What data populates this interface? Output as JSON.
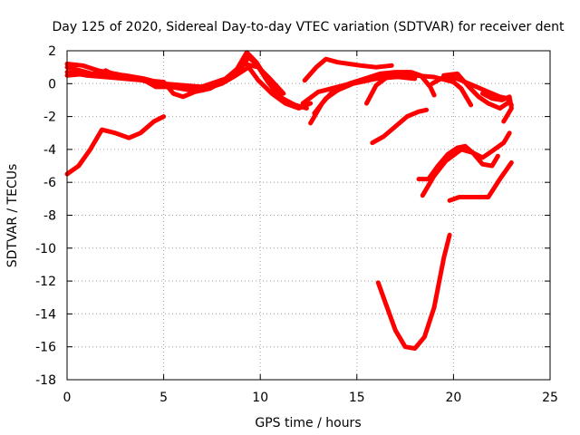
{
  "chart_data": {
    "type": "line",
    "title": "Day 125 of 2020, Sidereal Day-to-day VTEC variation (SDTVAR) for receiver dent",
    "xlabel": "GPS time / hours",
    "ylabel": "SDTVAR / TECUs",
    "xlim": [
      0,
      25
    ],
    "ylim": [
      -18,
      2
    ],
    "xticks": [
      0,
      5,
      10,
      15,
      20,
      25
    ],
    "yticks": [
      -18,
      -16,
      -14,
      -12,
      -10,
      -8,
      -6,
      -4,
      -2,
      0,
      2
    ],
    "grid": true,
    "series_color": "#ff0000",
    "series": [
      {
        "name": "s1",
        "points": [
          [
            0,
            1.2
          ],
          [
            0.8,
            1.1
          ],
          [
            1.6,
            0.8
          ],
          [
            2.5,
            0.6
          ],
          [
            3.3,
            0.4
          ],
          [
            4.2,
            0.1
          ],
          [
            5,
            0
          ],
          [
            6,
            -0.1
          ],
          [
            7,
            -0.2
          ],
          [
            8,
            0
          ],
          [
            8.8,
            0.6
          ],
          [
            9.4,
            1.6
          ],
          [
            9.8,
            1.2
          ],
          [
            10.4,
            0.1
          ],
          [
            11,
            -0.8
          ],
          [
            11.8,
            -1.3
          ],
          [
            12.4,
            -1.5
          ]
        ]
      },
      {
        "name": "s2",
        "points": [
          [
            0,
            0.7
          ],
          [
            1,
            0.5
          ],
          [
            2,
            0.4
          ],
          [
            3,
            0.3
          ],
          [
            4,
            0.2
          ],
          [
            5,
            0.1
          ],
          [
            5.5,
            -0.6
          ],
          [
            6,
            -0.8
          ],
          [
            6.6,
            -0.5
          ],
          [
            7.4,
            -0.3
          ],
          [
            8,
            0.1
          ],
          [
            8.8,
            0.9
          ],
          [
            9.3,
            1.9
          ],
          [
            9.8,
            1.3
          ],
          [
            10.5,
            0
          ],
          [
            11.2,
            -1
          ],
          [
            12,
            -1.4
          ]
        ]
      },
      {
        "name": "s3",
        "points": [
          [
            0,
            0.5
          ],
          [
            1,
            0.6
          ],
          [
            2,
            0.6
          ],
          [
            3,
            0.5
          ],
          [
            4,
            0.3
          ],
          [
            5,
            0
          ],
          [
            6,
            -0.2
          ],
          [
            7,
            -0.4
          ],
          [
            8,
            0
          ],
          [
            8.6,
            0.4
          ],
          [
            9.4,
            1
          ],
          [
            9.9,
            0.2
          ],
          [
            10.6,
            -0.6
          ],
          [
            11.3,
            -1.2
          ],
          [
            12,
            -1.5
          ],
          [
            12.6,
            -1.2
          ]
        ]
      },
      {
        "name": "s4",
        "points": [
          [
            0,
            1
          ],
          [
            1,
            0.7
          ],
          [
            1.6,
            0.5
          ],
          [
            2,
            0.8
          ],
          [
            2.5,
            0.5
          ],
          [
            3,
            0.4
          ],
          [
            4,
            0.2
          ],
          [
            4.6,
            -0.2
          ],
          [
            5.4,
            -0.2
          ],
          [
            6.4,
            -0.4
          ],
          [
            7.2,
            -0.1
          ],
          [
            8.2,
            0.3
          ],
          [
            9.2,
            1.2
          ],
          [
            9.9,
            1
          ],
          [
            10.5,
            0.3
          ],
          [
            11.2,
            -0.6
          ]
        ]
      },
      {
        "name": "s5",
        "points": [
          [
            12.3,
            0.2
          ],
          [
            12.9,
            1
          ],
          [
            13.4,
            1.5
          ],
          [
            14,
            1.3
          ],
          [
            14.6,
            1.2
          ],
          [
            15.2,
            1.1
          ],
          [
            16,
            1
          ],
          [
            16.8,
            1.1
          ]
        ]
      },
      {
        "name": "s6",
        "points": [
          [
            12.6,
            -2.4
          ],
          [
            13.2,
            -1.2
          ],
          [
            13.8,
            -0.4
          ],
          [
            14.6,
            0
          ],
          [
            15.4,
            0.3
          ],
          [
            16.2,
            0.6
          ],
          [
            17,
            0.7
          ],
          [
            17.8,
            0.7
          ],
          [
            18.3,
            0.5
          ],
          [
            18.8,
            -0.2
          ],
          [
            19,
            -0.7
          ]
        ]
      },
      {
        "name": "s7",
        "points": [
          [
            12.8,
            -1.8
          ],
          [
            13.4,
            -0.9
          ],
          [
            14,
            -0.4
          ],
          [
            14.8,
            0
          ],
          [
            15.6,
            0.2
          ],
          [
            16.4,
            0.5
          ],
          [
            17.2,
            0.4
          ],
          [
            18,
            0.3
          ]
        ]
      },
      {
        "name": "s8",
        "points": [
          [
            12.2,
            -1.2
          ],
          [
            13,
            -0.5
          ],
          [
            14,
            -0.2
          ],
          [
            15,
            0.1
          ],
          [
            16,
            0.3
          ],
          [
            17,
            0.4
          ],
          [
            18,
            0.5
          ],
          [
            19,
            0.4
          ],
          [
            20,
            0.1
          ]
        ]
      },
      {
        "name": "s9",
        "points": [
          [
            15.5,
            -1.2
          ],
          [
            16,
            -0.1
          ],
          [
            16.8,
            0.6
          ],
          [
            17.6,
            0.7
          ],
          [
            18.2,
            0.5
          ]
        ]
      },
      {
        "name": "s10",
        "points": [
          [
            18.9,
            0
          ],
          [
            19.5,
            0.4
          ],
          [
            20.2,
            0.3
          ],
          [
            21,
            -0.1
          ],
          [
            21.8,
            -0.5
          ],
          [
            22.4,
            -0.8
          ],
          [
            22.8,
            -0.9
          ],
          [
            23,
            -1.3
          ]
        ]
      },
      {
        "name": "s11",
        "points": [
          [
            19.5,
            0.5
          ],
          [
            20.2,
            0.6
          ],
          [
            20.8,
            -0.2
          ],
          [
            21.3,
            -0.8
          ],
          [
            21.8,
            -1.2
          ],
          [
            22.4,
            -1.5
          ],
          [
            22.9,
            -1.1
          ]
        ]
      },
      {
        "name": "s12",
        "points": [
          [
            19.8,
            0.3
          ],
          [
            20.4,
            -0.3
          ],
          [
            20.9,
            -1.3
          ]
        ]
      },
      {
        "name": "s13",
        "points": [
          [
            21.5,
            -0.6
          ],
          [
            22,
            -0.9
          ],
          [
            22.5,
            -1
          ],
          [
            22.9,
            -0.8
          ],
          [
            23,
            -1.5
          ],
          [
            22.6,
            -2.3
          ]
        ]
      },
      {
        "name": "s14",
        "points": [
          [
            0,
            -5.5
          ],
          [
            0.6,
            -5
          ],
          [
            1.2,
            -4
          ],
          [
            1.8,
            -2.8
          ],
          [
            2.5,
            -3
          ],
          [
            3.2,
            -3.3
          ],
          [
            3.8,
            -3
          ],
          [
            4.5,
            -2.3
          ],
          [
            5,
            -2
          ]
        ]
      },
      {
        "name": "s15",
        "points": [
          [
            15.8,
            -3.6
          ],
          [
            16.4,
            -3.2
          ],
          [
            17,
            -2.6
          ],
          [
            17.6,
            -2
          ],
          [
            18.2,
            -1.7
          ],
          [
            18.6,
            -1.6
          ]
        ]
      },
      {
        "name": "s16",
        "points": [
          [
            18.2,
            -5.8
          ],
          [
            18.7,
            -5.8
          ],
          [
            19.2,
            -5
          ],
          [
            19.7,
            -4.3
          ],
          [
            20.2,
            -3.9
          ],
          [
            20.6,
            -3.8
          ],
          [
            21,
            -4.2
          ],
          [
            21.5,
            -4.5
          ],
          [
            22,
            -4.1
          ],
          [
            22.6,
            -3.6
          ],
          [
            22.9,
            -3
          ]
        ]
      },
      {
        "name": "s17",
        "points": [
          [
            18.4,
            -6.8
          ],
          [
            19,
            -5.6
          ],
          [
            19.6,
            -4.7
          ],
          [
            20.4,
            -4
          ],
          [
            21,
            -4.2
          ],
          [
            21.5,
            -4.9
          ],
          [
            22,
            -5
          ],
          [
            22.3,
            -4.4
          ]
        ]
      },
      {
        "name": "s18",
        "points": [
          [
            19.8,
            -7.1
          ],
          [
            20.3,
            -6.9
          ],
          [
            20.8,
            -6.9
          ],
          [
            21.3,
            -6.9
          ],
          [
            21.8,
            -6.9
          ],
          [
            22.4,
            -5.8
          ],
          [
            23,
            -4.8
          ]
        ]
      },
      {
        "name": "s19",
        "points": [
          [
            16.1,
            -12.1
          ],
          [
            16.5,
            -13.4
          ],
          [
            17,
            -15
          ],
          [
            17.5,
            -16
          ],
          [
            18,
            -16.1
          ],
          [
            18.5,
            -15.4
          ],
          [
            19,
            -13.6
          ],
          [
            19.5,
            -10.6
          ],
          [
            19.8,
            -9.2
          ]
        ]
      }
    ]
  }
}
